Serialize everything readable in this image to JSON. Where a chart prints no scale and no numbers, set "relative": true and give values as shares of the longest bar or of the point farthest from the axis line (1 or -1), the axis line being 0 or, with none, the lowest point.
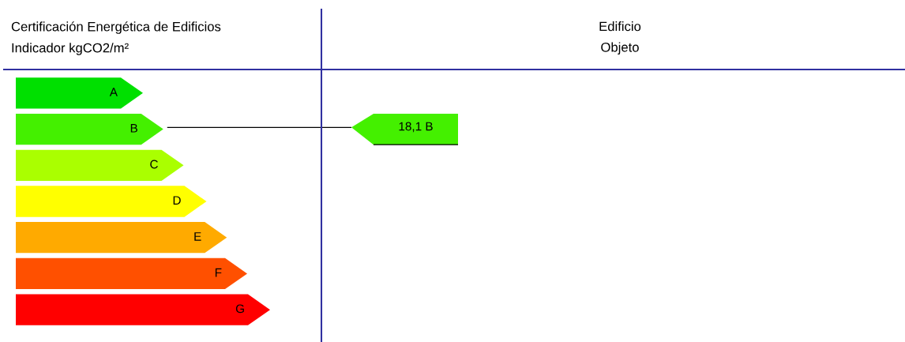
{
  "chart_data": {
    "type": "bar",
    "orientation": "horizontal",
    "relative": true,
    "title": "Certificación Energética de Edificios",
    "subtitle": "Indicador kgCO2/m²",
    "categories": [
      "A",
      "B",
      "C",
      "D",
      "E",
      "F",
      "G"
    ],
    "values": [
      0.5,
      0.58,
      0.66,
      0.75,
      0.83,
      0.91,
      1
    ],
    "colors": [
      "#00e000",
      "#44f000",
      "#aaff00",
      "#ffff00",
      "#ffaa00",
      "#ff5000",
      "#ff0000"
    ],
    "annotations": [
      "Edificio\nObjeto",
      "18,1 B"
    ]
  }
}
